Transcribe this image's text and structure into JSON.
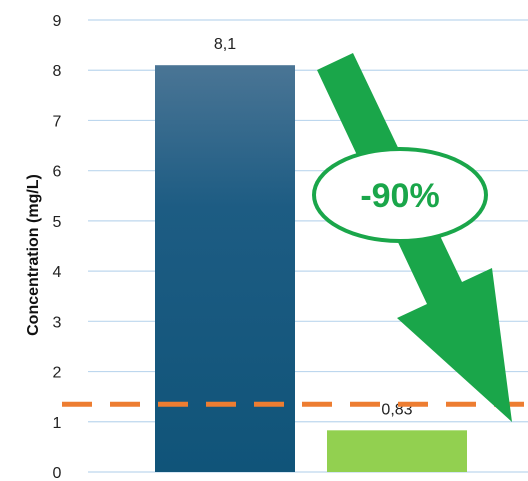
{
  "chart_data": {
    "type": "bar",
    "categories": [
      "",
      ""
    ],
    "values": [
      8.1,
      0.83
    ],
    "value_labels": [
      "8,1",
      "0,83"
    ],
    "bar_colors": [
      "#175b84",
      "#92d050"
    ],
    "ylabel": "Concentration (mg/L)",
    "ylim": [
      0,
      9
    ],
    "yticks": [
      "0",
      "1",
      "2",
      "3",
      "4",
      "5",
      "6",
      "7",
      "8",
      "9"
    ],
    "grid": true,
    "gridline_color": "#bdd7ee",
    "reference_line": {
      "value": 1.35,
      "style": "dashed",
      "color": "#ed7d31"
    },
    "callout": {
      "text": "-90%",
      "color": "#1aa64a",
      "shape": "arrow-down-right"
    }
  }
}
